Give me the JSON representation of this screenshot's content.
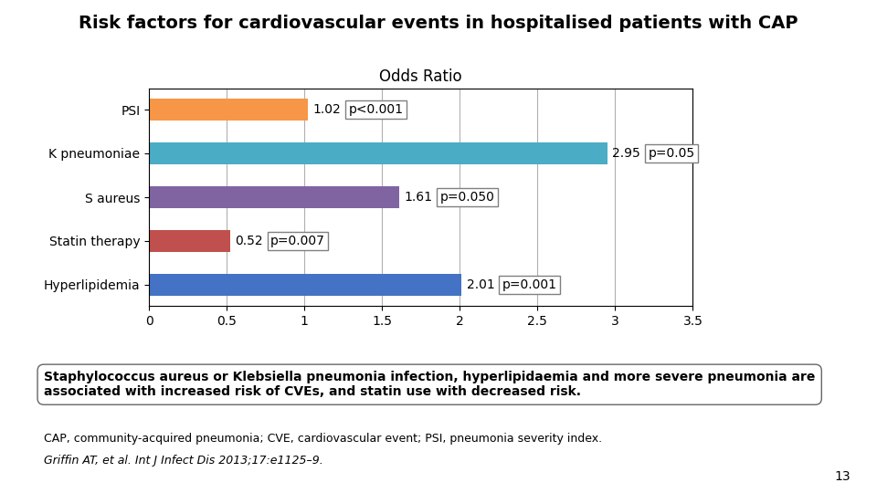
{
  "chart_data": {
    "type": "bar",
    "orientation": "horizontal",
    "title": "Risk factors for cardiovascular events in hospitalised patients with CAP",
    "subtitle": "Odds Ratio",
    "categories": [
      "PSI",
      "K pneumoniae",
      "S aureus",
      "Statin therapy",
      "Hyperlipidemia"
    ],
    "values": [
      1.02,
      2.95,
      1.61,
      0.52,
      2.01
    ],
    "colors": [
      "#F79646",
      "#4BACC6",
      "#8064A2",
      "#C0504D",
      "#4472C4"
    ],
    "p_values": [
      "p<0.001",
      "p=0.05",
      "p=0.050",
      "p=0.007",
      "p=0.001"
    ],
    "data_labels": true,
    "xlim": [
      0,
      3.5
    ],
    "xticks": [
      0,
      0.5,
      1,
      1.5,
      2,
      2.5,
      3,
      3.5
    ],
    "grid": true,
    "annotations": [
      "Staphylococcus aureus or Klebsiella pneumonia infection, hyperlipidaemia and more severe pneumonia are associated with increased risk of CVEs, and statin use with decreased risk.",
      "CAP, community-acquired pneumonia; CVE, cardiovascular event; PSI, pneumonia severity index.",
      "Griffin AT, et al. Int J Infect Dis 2013;17:e1125–9.",
      "13"
    ]
  }
}
